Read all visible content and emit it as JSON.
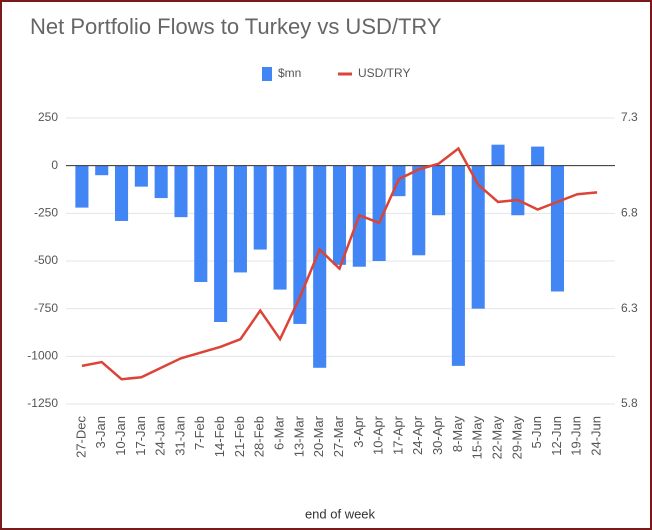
{
  "chart_data": {
    "type": "bar_line",
    "title": "Net Portfolio Flows to Turkey vs USD/TRY",
    "x_label": "end of week",
    "categories": [
      "27-Dec",
      "3-Jan",
      "10-Jan",
      "17-Jan",
      "24-Jan",
      "31-Jan",
      "7-Feb",
      "14-Feb",
      "21-Feb",
      "28-Feb",
      "6-Mar",
      "13-Mar",
      "20-Mar",
      "27-Mar",
      "3-Apr",
      "10-Apr",
      "17-Apr",
      "24-Apr",
      "30-Apr",
      "8-May",
      "15-May",
      "22-May",
      "29-May",
      "5-Jun",
      "12-Jun",
      "19-Jun",
      "24-Jun"
    ],
    "series": [
      {
        "name": "$mn",
        "type": "bar",
        "color": "#4285f4",
        "values": [
          -220,
          -50,
          -290,
          -110,
          -170,
          -270,
          -610,
          -820,
          -560,
          -440,
          -650,
          -830,
          -1060,
          -520,
          -530,
          -500,
          -160,
          -470,
          -260,
          -1050,
          -750,
          110,
          -260,
          100,
          -660,
          null,
          null
        ]
      },
      {
        "name": "USD/TRY",
        "type": "line",
        "axis": "y2",
        "color": "#db4437",
        "values": [
          6.0,
          6.02,
          5.93,
          5.94,
          5.99,
          6.04,
          6.07,
          6.1,
          6.14,
          6.29,
          6.14,
          6.36,
          6.61,
          6.51,
          6.79,
          6.75,
          6.98,
          7.03,
          7.06,
          7.14,
          6.95,
          6.86,
          6.87,
          6.82,
          6.86,
          6.9,
          6.91
        ]
      }
    ],
    "ylim": [
      -1250,
      250
    ],
    "yticks": [
      -1250,
      -1000,
      -750,
      -500,
      -250,
      0,
      250
    ],
    "y2lim": [
      5.8,
      7.3
    ],
    "y2ticks": [
      5.8,
      6.3,
      6.8,
      7.3
    ],
    "grid": true,
    "legend": "top"
  }
}
